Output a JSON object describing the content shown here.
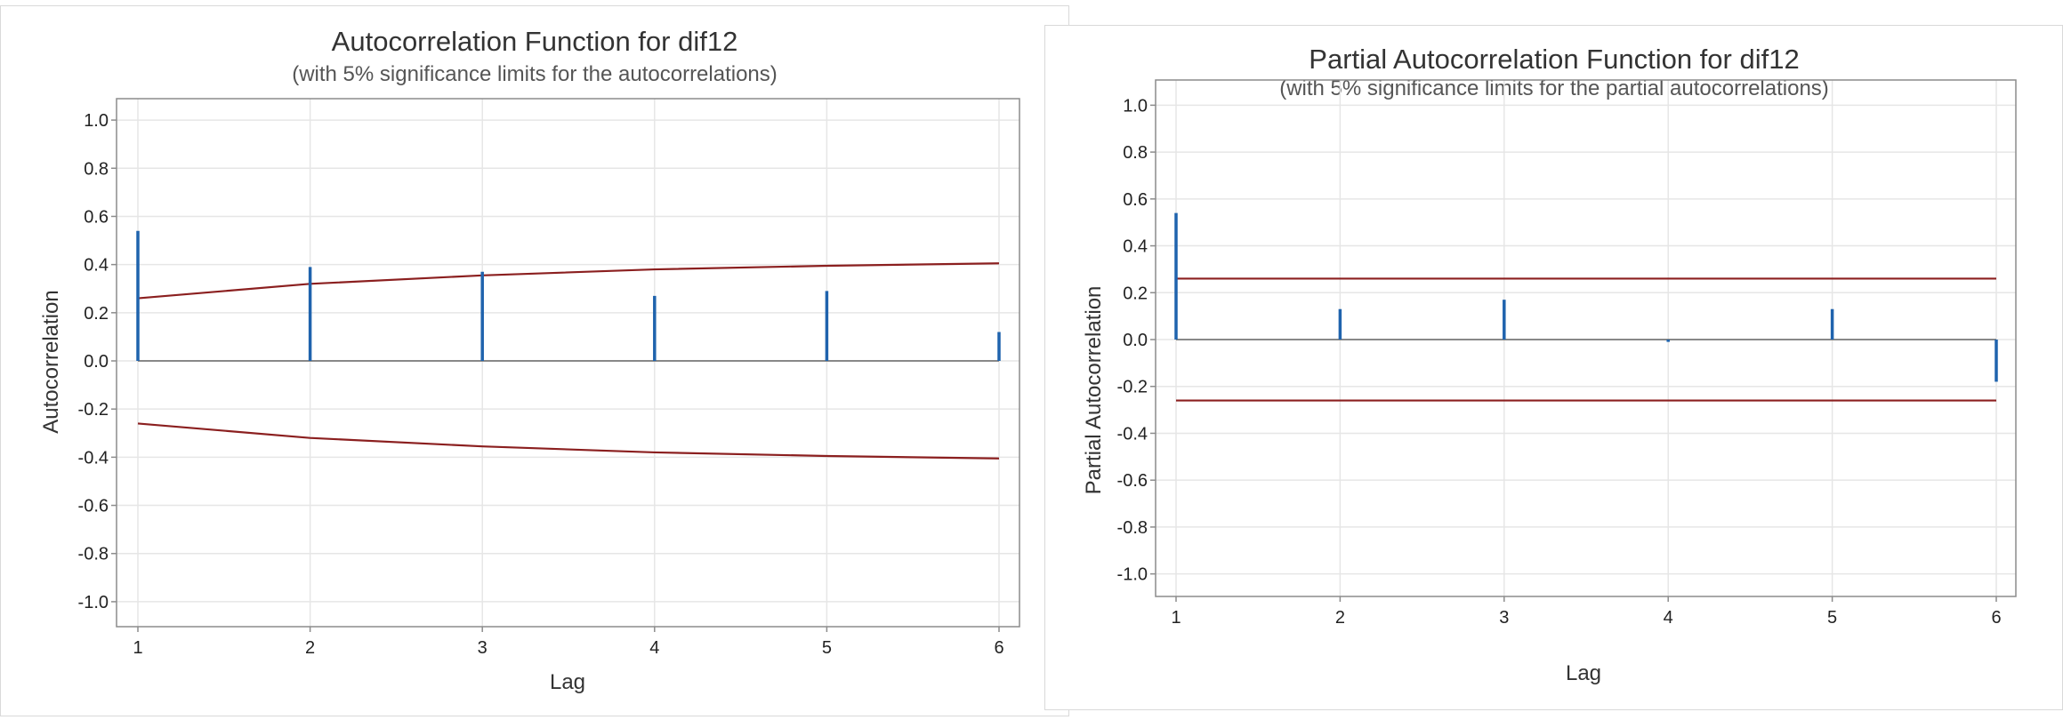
{
  "chart_data": [
    {
      "type": "bar",
      "title": "Autocorrelation Function for dif12",
      "subtitle": "(with 5% significance limits for the autocorrelations)",
      "xlabel": "Lag",
      "ylabel": "Autocorrelation",
      "x": [
        1,
        2,
        3,
        4,
        5,
        6
      ],
      "values": [
        0.54,
        0.39,
        0.37,
        0.27,
        0.29,
        0.12
      ],
      "xticks": [
        "1",
        "2",
        "3",
        "4",
        "5",
        "6"
      ],
      "yticks": [
        "1.0",
        "0.8",
        "0.6",
        "0.4",
        "0.2",
        "0.0",
        "-0.2",
        "-0.4",
        "-0.6",
        "-0.8",
        "-1.0"
      ],
      "ylim": [
        -1.1,
        1.1
      ],
      "significance_limits": [
        0.26,
        0.32,
        0.355,
        0.38,
        0.395,
        0.405
      ],
      "grid": true,
      "colors": {
        "bars": "#1f63ad",
        "limits": "#8b1f1f",
        "zero_line": "#888888",
        "grid": "#e6e6e6",
        "frame": "#8c8c8c"
      }
    },
    {
      "type": "bar",
      "title": "Partial Autocorrelation Function for dif12",
      "subtitle": "(with 5% significance limits for the partial autocorrelations)",
      "xlabel": "Lag",
      "ylabel": "Partial Autocorrelation",
      "x": [
        1,
        2,
        3,
        4,
        5,
        6
      ],
      "values": [
        0.54,
        0.13,
        0.17,
        -0.01,
        0.13,
        -0.18
      ],
      "xticks": [
        "1",
        "2",
        "3",
        "4",
        "5",
        "6"
      ],
      "yticks": [
        "1.0",
        "0.8",
        "0.6",
        "0.4",
        "0.2",
        "0.0",
        "-0.2",
        "-0.4",
        "-0.6",
        "-0.8",
        "-1.0"
      ],
      "ylim": [
        -1.1,
        1.1
      ],
      "significance_limits": [
        0.26,
        0.26,
        0.26,
        0.26,
        0.26,
        0.26
      ],
      "grid": true,
      "colors": {
        "bars": "#1f63ad",
        "limits": "#8b1f1f",
        "zero_line": "#888888",
        "grid": "#e6e6e6",
        "frame": "#8c8c8c"
      }
    }
  ]
}
